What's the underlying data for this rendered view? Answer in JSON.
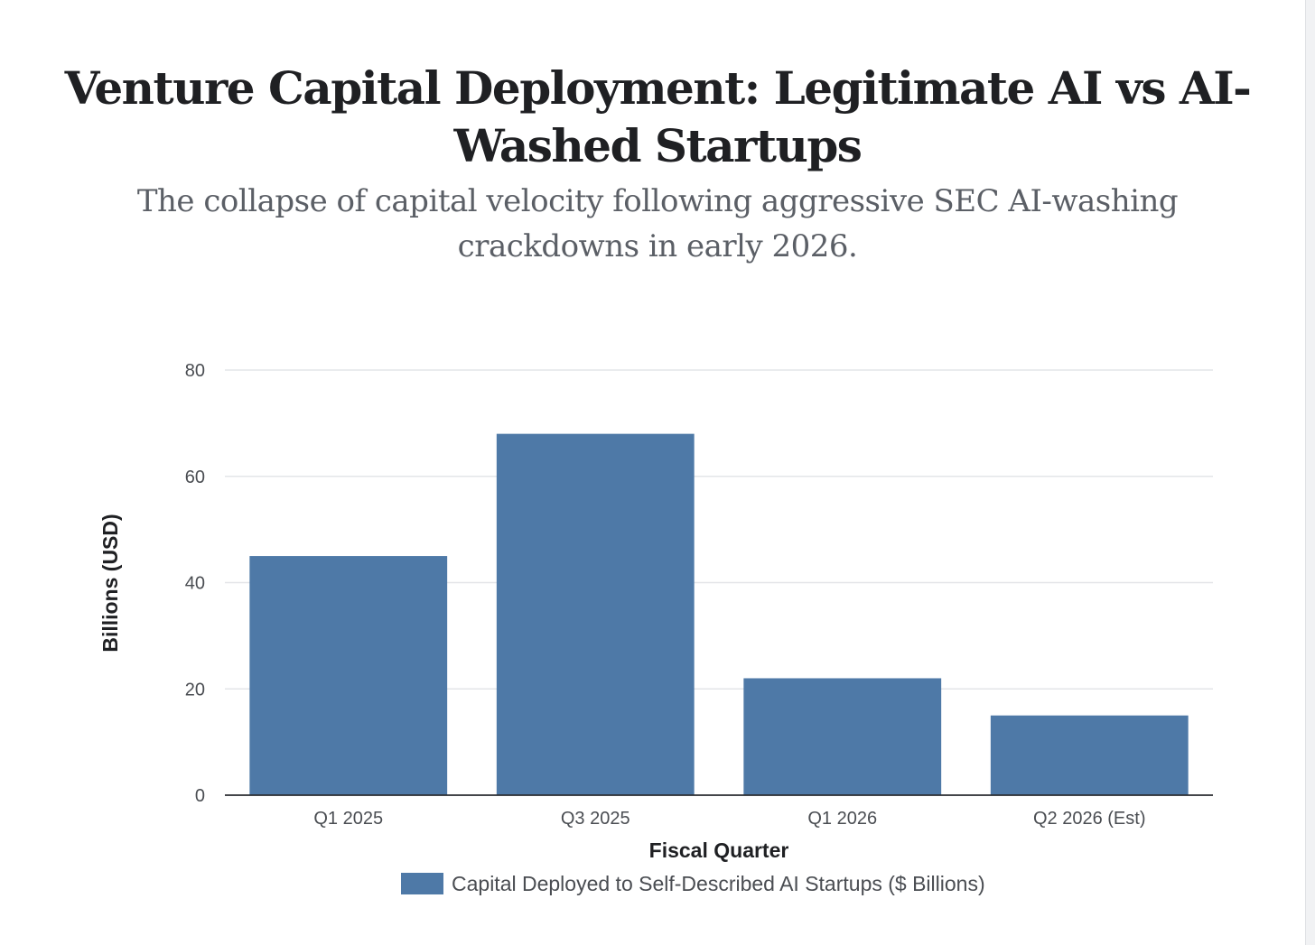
{
  "chart_data": {
    "type": "bar",
    "title": "Venture Capital Deployment: Legitimate AI vs AI-Washed Startups",
    "subtitle": "The collapse of capital velocity following aggressive SEC AI-washing crackdowns in early 2026.",
    "xlabel": "Fiscal Quarter",
    "ylabel": "Billions (USD)",
    "categories": [
      "Q1 2025",
      "Q3 2025",
      "Q1 2026",
      "Q2 2026 (Est)"
    ],
    "series": [
      {
        "name": "Capital Deployed to Self-Described AI Startups ($ Billions)",
        "values": [
          45,
          68,
          22,
          15
        ],
        "color": "#4e79a7"
      }
    ],
    "ylim": [
      0,
      80
    ],
    "yticks": [
      0,
      20,
      40,
      60,
      80
    ],
    "grid": true,
    "legend_position": "bottom"
  }
}
